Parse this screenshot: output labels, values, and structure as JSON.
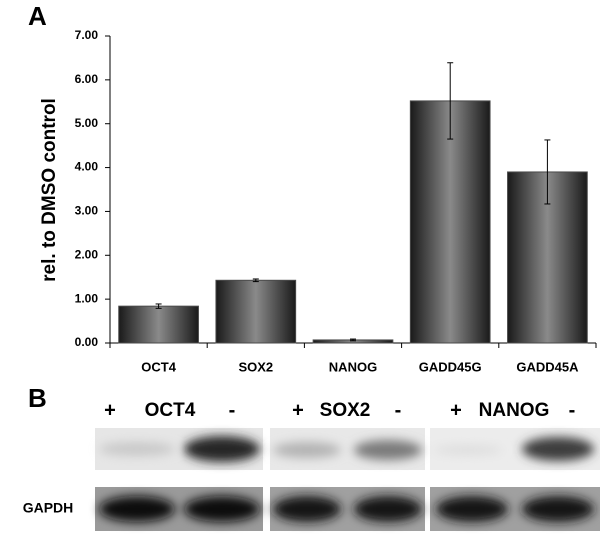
{
  "chart_data": {
    "type": "bar",
    "panel_label": "A",
    "y_label": "rel. to DMSO control",
    "categories": [
      "OCT4",
      "SOX2",
      "NANOG",
      "GADD45G",
      "GADD45A"
    ],
    "values": [
      0.84,
      1.43,
      0.07,
      5.52,
      3.9
    ],
    "errors": [
      0.05,
      0.03,
      0.02,
      0.87,
      0.73
    ],
    "color": "#4a4a4a",
    "ylim": [
      0,
      7
    ],
    "yticks": [
      {
        "value": 0,
        "label": "0.00"
      },
      {
        "value": 1,
        "label": "1.00"
      },
      {
        "value": 2,
        "label": "2.00"
      },
      {
        "value": 3,
        "label": "3.00"
      },
      {
        "value": 4,
        "label": "4.00"
      },
      {
        "value": 5,
        "label": "5.00"
      },
      {
        "value": 6,
        "label": "6.00"
      },
      {
        "value": 7,
        "label": "7.00"
      }
    ],
    "grid": false
  },
  "blot": {
    "panel_label": "B",
    "groups": [
      {
        "plus": "+",
        "name": "OCT4",
        "minus": "-"
      },
      {
        "plus": "+",
        "name": "SOX2",
        "minus": "-"
      },
      {
        "plus": "+",
        "name": "NANOG",
        "minus": "-"
      }
    ],
    "loading_control": "GAPDH"
  }
}
